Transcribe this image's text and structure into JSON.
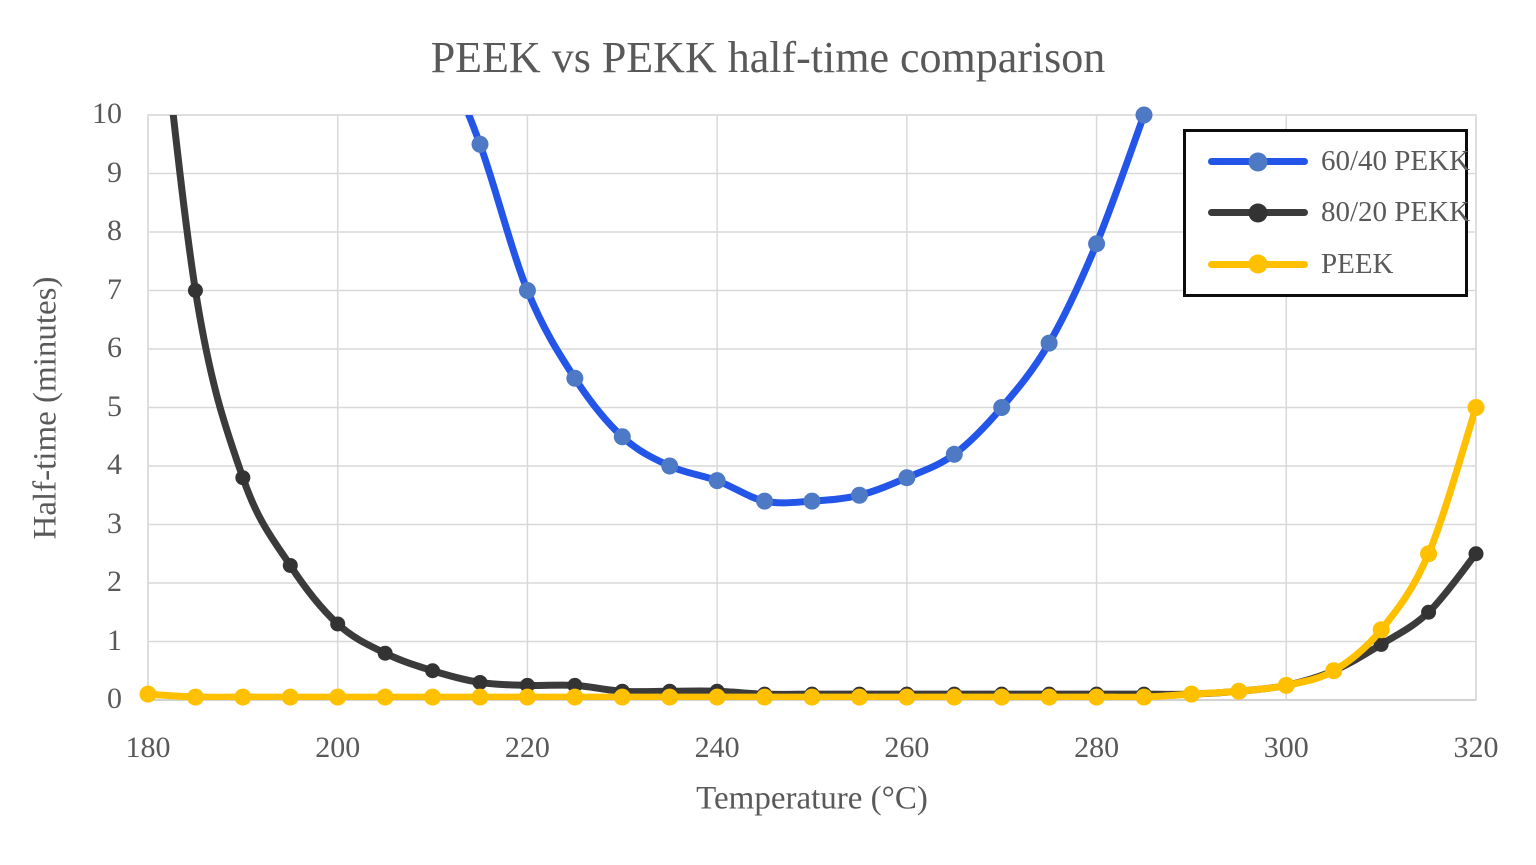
{
  "title": "PEEK vs PEKK half-time comparison",
  "chart_data": {
    "type": "line",
    "title": "PEEK vs PEKK half-time comparison",
    "xlabel": "Temperature (°C)",
    "ylabel": "Half-time (minutes)",
    "xlim": [
      180,
      320
    ],
    "ylim": [
      0,
      10
    ],
    "x_ticks": [
      "180",
      "200",
      "220",
      "240",
      "260",
      "280",
      "300",
      "320"
    ],
    "x_tick_values": [
      180,
      200,
      220,
      240,
      260,
      280,
      300,
      320
    ],
    "y_ticks": [
      "0",
      "1",
      "2",
      "3",
      "4",
      "5",
      "6",
      "7",
      "8",
      "9",
      "10"
    ],
    "y_tick_values": [
      0,
      1,
      2,
      3,
      4,
      5,
      6,
      7,
      8,
      9,
      10
    ],
    "grid": true,
    "legend_position": "inside-top-right",
    "line_style": "smooth",
    "series": [
      {
        "name": "60/40 PEKK",
        "line_color": "#2356e8",
        "marker_color": "#4e79c4",
        "x": [
          215,
          220,
          225,
          230,
          235,
          240,
          245,
          250,
          255,
          260,
          265,
          270,
          275,
          280,
          285
        ],
        "values": [
          9.5,
          7.0,
          5.5,
          4.5,
          4.0,
          3.75,
          3.4,
          3.4,
          3.5,
          3.8,
          4.2,
          5.0,
          6.1,
          7.8,
          10.0
        ],
        "offscale_lead_in": {
          "x": 210,
          "approx_value": 11.5,
          "note": "curve enters plot from above y-max near 212 °C"
        }
      },
      {
        "name": "80/20 PEKK",
        "line_color": "#3b3b3b",
        "marker_color": "#333333",
        "x": [
          185,
          190,
          195,
          200,
          205,
          210,
          215,
          220,
          225,
          230,
          235,
          240,
          245,
          250,
          255,
          260,
          265,
          270,
          275,
          280,
          285,
          290,
          295,
          300,
          305,
          310,
          315,
          320
        ],
        "values": [
          7.0,
          3.8,
          2.3,
          1.3,
          0.8,
          0.5,
          0.3,
          0.25,
          0.25,
          0.15,
          0.15,
          0.15,
          0.1,
          0.1,
          0.1,
          0.1,
          0.1,
          0.1,
          0.1,
          0.1,
          0.1,
          0.1,
          0.15,
          0.25,
          0.5,
          0.95,
          1.5,
          2.5
        ],
        "offscale_lead_in": {
          "x": 180,
          "approx_value": 14,
          "note": "curve enters plot from above y-max near 183 °C"
        }
      },
      {
        "name": "PEEK",
        "line_color": "#ffc000",
        "marker_color": "#ffc000",
        "x": [
          180,
          185,
          190,
          195,
          200,
          205,
          210,
          215,
          220,
          225,
          230,
          235,
          240,
          245,
          250,
          255,
          260,
          265,
          270,
          275,
          280,
          285,
          290,
          295,
          300,
          305,
          310,
          315,
          320
        ],
        "values": [
          0.1,
          0.05,
          0.05,
          0.05,
          0.05,
          0.05,
          0.05,
          0.05,
          0.05,
          0.05,
          0.05,
          0.05,
          0.05,
          0.05,
          0.05,
          0.05,
          0.05,
          0.05,
          0.05,
          0.05,
          0.05,
          0.05,
          0.1,
          0.15,
          0.25,
          0.5,
          1.2,
          2.5,
          5.0
        ],
        "offscale_lead_in": null
      }
    ],
    "colors": {
      "gridline": "#d9d9d9",
      "axis_line": "#bfbfbf",
      "text": "#595959",
      "legend_border": "#0d0d0d",
      "background": "#ffffff"
    }
  }
}
